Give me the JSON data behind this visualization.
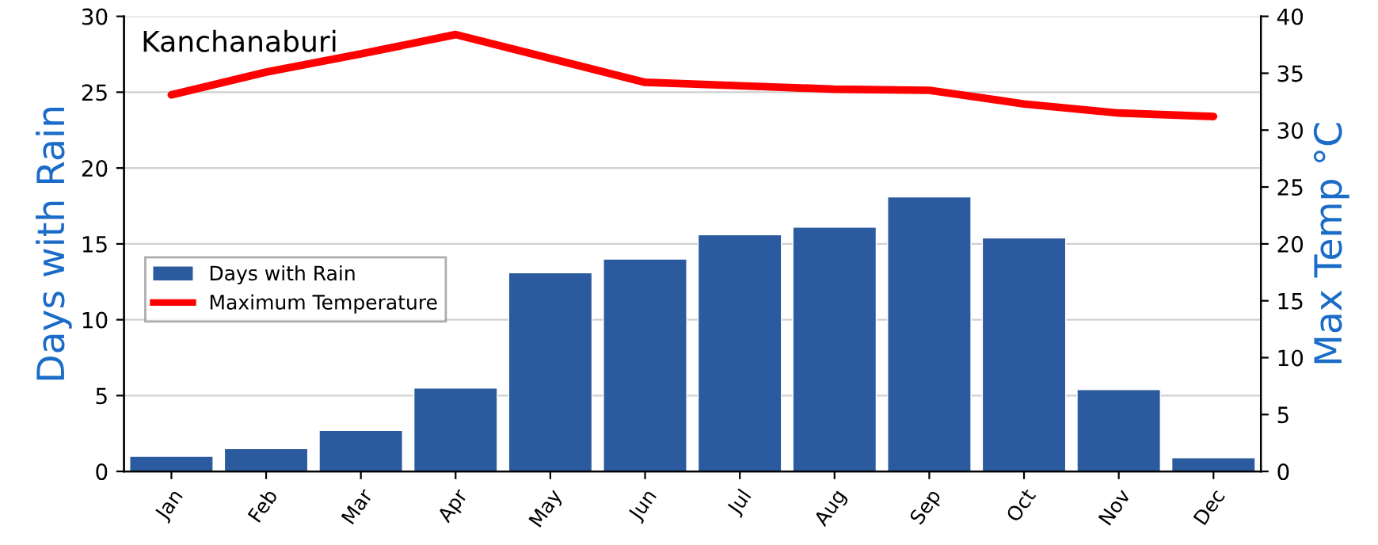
{
  "chart_data": {
    "type": "bar",
    "title": "Kanchanaburi",
    "ylabel": "Days with Rain",
    "y2label": "Max Temp °C",
    "categories": [
      "Jan",
      "Feb",
      "Mar",
      "Apr",
      "May",
      "Jun",
      "Jul",
      "Aug",
      "Sep",
      "Oct",
      "Nov",
      "Dec"
    ],
    "series": [
      {
        "name": "Days with Rain",
        "color": "#2b5a9e",
        "values": [
          1.0,
          1.5,
          2.7,
          5.5,
          13.1,
          14.0,
          15.6,
          16.1,
          18.1,
          15.4,
          5.4,
          0.9
        ]
      },
      {
        "name": "Maximum Temperature",
        "type": "line",
        "axis": "y2",
        "color": "#ff0000",
        "values": [
          33.1,
          35.1,
          36.7,
          38.4,
          36.3,
          34.2,
          33.9,
          33.6,
          33.5,
          32.3,
          31.5,
          31.2
        ]
      }
    ],
    "ylim": [
      0,
      30
    ],
    "yticks": [
      0,
      5,
      10,
      15,
      20,
      25,
      30
    ],
    "y2lim": [
      0,
      40
    ],
    "y2ticks": [
      0,
      5,
      10,
      15,
      20,
      25,
      30,
      35,
      40
    ],
    "grid": "y",
    "legend": "left",
    "marker": "none",
    "line_style": "solid"
  }
}
